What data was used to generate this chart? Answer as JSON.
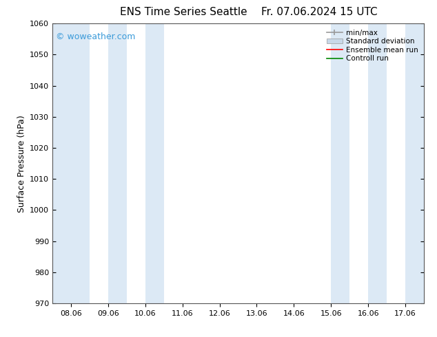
{
  "title_left": "ENS Time Series Seattle",
  "title_right": "Fr. 07.06.2024 15 UTC",
  "ylabel": "Surface Pressure (hPa)",
  "ylim": [
    970,
    1060
  ],
  "yticks": [
    970,
    980,
    990,
    1000,
    1010,
    1020,
    1030,
    1040,
    1050,
    1060
  ],
  "x_tick_labels": [
    "08.06",
    "09.06",
    "10.06",
    "11.06",
    "12.06",
    "13.06",
    "14.06",
    "15.06",
    "16.06",
    "17.06"
  ],
  "x_tick_positions": [
    0,
    1,
    2,
    3,
    4,
    5,
    6,
    7,
    8,
    9
  ],
  "xlim_min": -0.5,
  "xlim_max": 9.5,
  "shade_bands": [
    {
      "x_start": -0.5,
      "x_end": 0.5,
      "color": "#dce9f5"
    },
    {
      "x_start": 0.5,
      "x_end": 1.0,
      "color": "#ffffff"
    },
    {
      "x_start": 1.0,
      "x_end": 1.5,
      "color": "#dce9f5"
    },
    {
      "x_start": 1.5,
      "x_end": 2.0,
      "color": "#ffffff"
    },
    {
      "x_start": 2.0,
      "x_end": 2.5,
      "color": "#dce9f5"
    },
    {
      "x_start": 7.0,
      "x_end": 7.5,
      "color": "#dce9f5"
    },
    {
      "x_start": 7.5,
      "x_end": 8.0,
      "color": "#ffffff"
    },
    {
      "x_start": 8.0,
      "x_end": 8.5,
      "color": "#dce9f5"
    },
    {
      "x_start": 8.5,
      "x_end": 9.0,
      "color": "#ffffff"
    },
    {
      "x_start": 9.0,
      "x_end": 9.5,
      "color": "#dce9f5"
    }
  ],
  "bg_color": "#ffffff",
  "plot_bg_color": "#ffffff",
  "watermark": "© woweather.com",
  "watermark_color": "#3a9ad9",
  "legend_labels": [
    "min/max",
    "Standard deviation",
    "Ensemble mean run",
    "Controll run"
  ],
  "legend_colors": [
    "#999999",
    "#c8d8e8",
    "#ff0000",
    "#008800"
  ],
  "title_fontsize": 11,
  "axis_label_fontsize": 9,
  "tick_fontsize": 8,
  "watermark_fontsize": 9
}
